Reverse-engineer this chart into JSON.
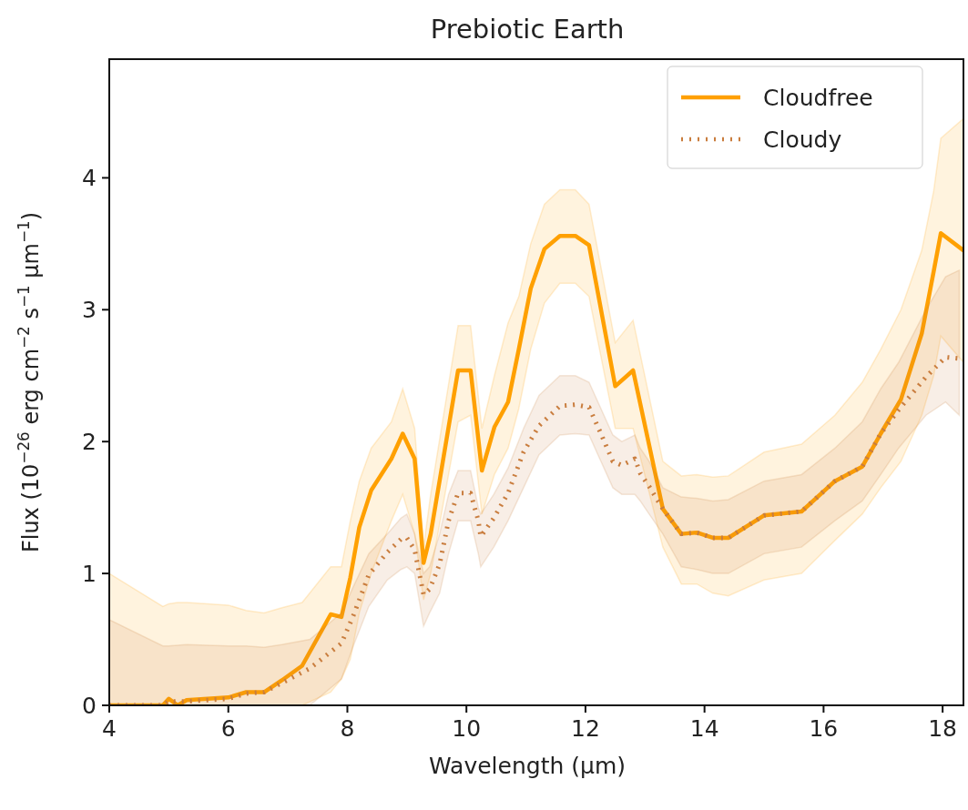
{
  "chart_data": {
    "type": "line",
    "title": "Prebiotic Earth",
    "xlabel": "Wavelength (μm)",
    "ylabel": "Flux (10$^{−26}$ erg cm$^{−2}$ s$^{−1}$ μm$^{−1}$)",
    "xlim": [
      4,
      18.35
    ],
    "ylim": [
      0,
      4.9
    ],
    "xticks": [
      4,
      6,
      8,
      10,
      12,
      14,
      16,
      18
    ],
    "yticks": [
      0,
      1,
      2,
      3,
      4
    ],
    "grid": false,
    "legend": "top right",
    "series": [
      {
        "name": "Cloudfree",
        "color": "#ffa000",
        "line_style": "solid",
        "x": [
          4,
          4.9,
          5.0,
          5.15,
          5.3,
          6.0,
          6.3,
          6.6,
          6.9,
          7.24,
          7.72,
          7.9,
          8.05,
          8.2,
          8.4,
          8.74,
          8.93,
          9.13,
          9.28,
          9.4,
          9.86,
          10.07,
          10.26,
          10.47,
          10.7,
          10.88,
          11.08,
          11.31,
          11.57,
          11.83,
          12.06,
          12.5,
          12.8,
          13.3,
          13.61,
          13.87,
          14.14,
          14.4,
          15.0,
          15.63,
          16.19,
          16.65,
          16.96,
          17.3,
          17.65,
          17.85,
          17.97,
          18.35
        ],
        "values": [
          0,
          0,
          0.05,
          0,
          0.04,
          0.06,
          0.1,
          0.1,
          0.19,
          0.3,
          0.69,
          0.67,
          0.97,
          1.35,
          1.63,
          1.87,
          2.06,
          1.87,
          1.08,
          1.3,
          2.54,
          2.54,
          1.78,
          2.11,
          2.3,
          2.7,
          3.16,
          3.46,
          3.56,
          3.56,
          3.49,
          2.42,
          2.54,
          1.49,
          1.3,
          1.31,
          1.27,
          1.27,
          1.44,
          1.47,
          1.7,
          1.81,
          2.06,
          2.32,
          2.82,
          3.29,
          3.58,
          3.45
        ],
        "upper": [
          1.0,
          0.75,
          0.77,
          0.78,
          0.78,
          0.76,
          0.72,
          0.7,
          0.74,
          0.78,
          1.05,
          1.05,
          1.4,
          1.7,
          1.95,
          2.15,
          2.4,
          2.1,
          1.2,
          1.6,
          2.88,
          2.88,
          2.1,
          2.5,
          2.9,
          3.1,
          3.5,
          3.8,
          3.91,
          3.91,
          3.8,
          2.75,
          2.92,
          1.85,
          1.74,
          1.75,
          1.73,
          1.74,
          1.92,
          1.98,
          2.2,
          2.45,
          2.7,
          3.0,
          3.45,
          3.9,
          4.3,
          4.45
        ],
        "lower": [
          0,
          0,
          0,
          0,
          0,
          0,
          0,
          0,
          0,
          0,
          0.1,
          0.2,
          0.35,
          0.7,
          1.0,
          1.4,
          1.6,
          1.3,
          0.8,
          1.0,
          2.15,
          2.2,
          1.45,
          1.75,
          1.95,
          2.25,
          2.7,
          3.05,
          3.2,
          3.2,
          3.1,
          2.1,
          2.1,
          1.2,
          0.92,
          0.92,
          0.85,
          0.83,
          0.95,
          1.0,
          1.25,
          1.45,
          1.65,
          1.85,
          2.2,
          2.5,
          2.8,
          2.6
        ]
      },
      {
        "name": "Cloudy",
        "color": "#c97d3e",
        "line_style": "dotted",
        "x": [
          4,
          4.9,
          5.0,
          5.3,
          6.0,
          6.3,
          6.6,
          6.9,
          7.37,
          7.9,
          8.1,
          8.36,
          8.67,
          8.9,
          9.0,
          9.13,
          9.28,
          9.38,
          9.55,
          9.7,
          9.86,
          10.07,
          10.2,
          10.24,
          10.46,
          10.7,
          10.96,
          11.22,
          11.57,
          11.83,
          12.06,
          12.26,
          12.46,
          12.61,
          12.83,
          12.92,
          13.07,
          13.3,
          13.61,
          13.87,
          14.14,
          14.4,
          15.0,
          15.63,
          16.19,
          16.65,
          16.96,
          17.26,
          17.72,
          18.05,
          18.28
        ],
        "values": [
          0,
          0,
          0.03,
          0.03,
          0.05,
          0.09,
          0.1,
          0.17,
          0.28,
          0.47,
          0.68,
          0.99,
          1.16,
          1.26,
          1.27,
          1.18,
          0.84,
          0.88,
          1.07,
          1.4,
          1.61,
          1.61,
          1.4,
          1.28,
          1.42,
          1.61,
          1.92,
          2.12,
          2.27,
          2.28,
          2.26,
          2.06,
          1.85,
          1.82,
          1.87,
          1.76,
          1.66,
          1.49,
          1.3,
          1.31,
          1.27,
          1.27,
          1.44,
          1.47,
          1.7,
          1.81,
          2.06,
          2.24,
          2.49,
          2.64,
          2.63
        ],
        "upper": [
          0.65,
          0.45,
          0.45,
          0.46,
          0.45,
          0.45,
          0.44,
          0.46,
          0.5,
          0.7,
          0.9,
          1.15,
          1.3,
          1.42,
          1.45,
          1.3,
          1.0,
          1.05,
          1.3,
          1.6,
          1.78,
          1.78,
          1.5,
          1.45,
          1.6,
          1.8,
          2.1,
          2.35,
          2.5,
          2.5,
          2.45,
          2.25,
          2.05,
          2.0,
          2.05,
          1.95,
          1.85,
          1.65,
          1.58,
          1.57,
          1.55,
          1.56,
          1.7,
          1.75,
          1.95,
          2.15,
          2.4,
          2.6,
          3.0,
          3.25,
          3.3
        ],
        "lower": [
          0,
          0,
          0,
          0,
          0,
          0,
          0,
          0,
          0,
          0.2,
          0.45,
          0.75,
          0.95,
          1.03,
          1.05,
          1.0,
          0.6,
          0.7,
          0.85,
          1.15,
          1.4,
          1.4,
          1.15,
          1.05,
          1.2,
          1.4,
          1.65,
          1.9,
          2.05,
          2.06,
          2.05,
          1.85,
          1.65,
          1.6,
          1.6,
          1.55,
          1.45,
          1.3,
          1.05,
          1.03,
          1.0,
          1.0,
          1.15,
          1.2,
          1.4,
          1.55,
          1.75,
          1.95,
          2.2,
          2.3,
          2.2
        ]
      }
    ]
  }
}
